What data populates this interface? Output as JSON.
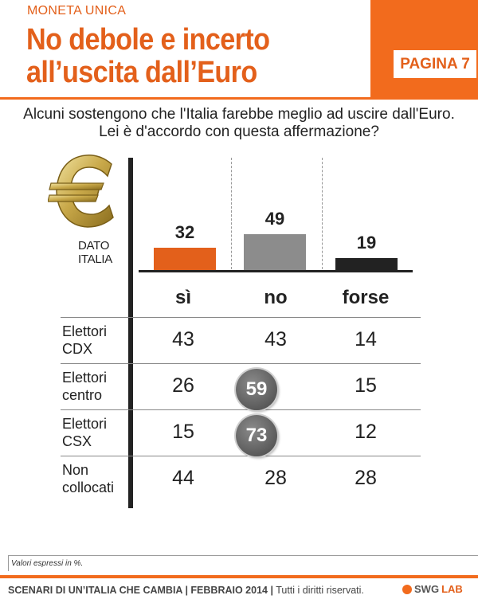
{
  "header": {
    "section": "MONETA UNICA",
    "title_line1": "No debole e incerto",
    "title_line2": "all’uscita dall’Euro",
    "page_label": "PAGINA 7"
  },
  "question": {
    "line1": "Alcuni sostengono che l'Italia farebbe meglio ad uscire dall'Euro.",
    "line2": "Lei è d'accordo con questa affermazione?"
  },
  "chart_label": {
    "line1": "DATO",
    "line2": "ITALIA"
  },
  "chart_data": {
    "type": "bar",
    "categories": [
      "sì",
      "no",
      "forse"
    ],
    "values": [
      32,
      49,
      19
    ],
    "colors": [
      "#e3601b",
      "#8c8c8c",
      "#222222"
    ],
    "ylim": [
      0,
      100
    ],
    "table": {
      "columns": [
        "sì",
        "no",
        "forse"
      ],
      "rows": [
        {
          "label_line1": "Elettori",
          "label_line2": "CDX",
          "values": [
            43,
            43,
            14
          ],
          "highlight": [
            false,
            false,
            false
          ]
        },
        {
          "label_line1": "Elettori",
          "label_line2": "centro",
          "values": [
            26,
            59,
            15
          ],
          "highlight": [
            false,
            true,
            false
          ]
        },
        {
          "label_line1": "Elettori",
          "label_line2": "CSX",
          "values": [
            15,
            73,
            12
          ],
          "highlight": [
            false,
            true,
            false
          ]
        },
        {
          "label_line1": "Non",
          "label_line2": "collocati",
          "values": [
            44,
            28,
            28
          ],
          "highlight": [
            false,
            false,
            false
          ]
        }
      ]
    }
  },
  "note": "Valori espressi in %.",
  "footer": {
    "title": "SCENARI DI UN’ITALIA CHE CAMBIA | FEBBRAIO 2014 |",
    "rights": "Tutti i diritti riservati.",
    "logo": "SWG",
    "logo_suffix": "LAB"
  },
  "icons": {
    "euro": "euro-icon",
    "logo": "swg-logo-icon"
  }
}
